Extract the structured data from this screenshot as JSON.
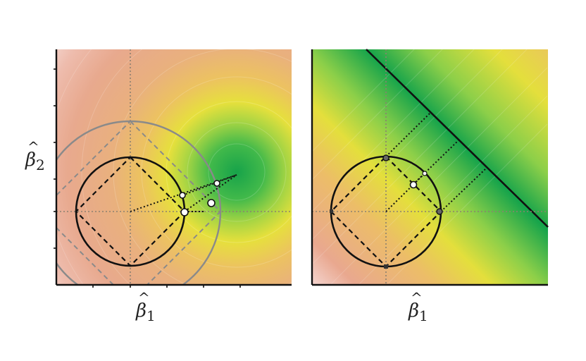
{
  "colors": {
    "far": "#f4d4cf",
    "mid_far": "#ecaf97",
    "mid": "#e7a98a",
    "orange": "#ecc06a",
    "yellow": "#e3df3c",
    "lightgreen": "#9dd44a",
    "green": "#1aa84d",
    "axis": "#222222",
    "dotted_guides": "#9a8a7a"
  },
  "left_panel": {
    "axis_x_symbol": "β",
    "axis_x_subscript": "1",
    "axis_y_symbol": "β",
    "axis_y_subscript": "2"
  },
  "right_panel": {
    "axis_x_symbol": "β",
    "axis_x_subscript": "1"
  }
}
